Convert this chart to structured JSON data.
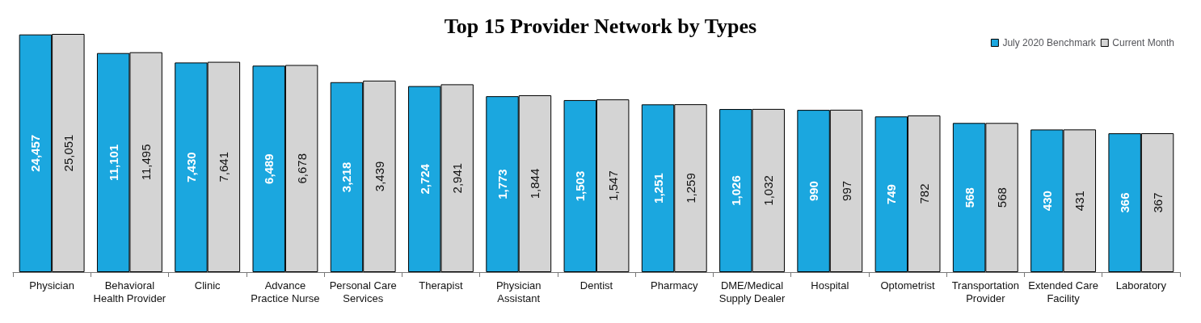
{
  "chart_data": {
    "type": "bar",
    "title": "Top 15 Provider Network by Types",
    "categories": [
      "Physician",
      "Behavioral\nHealth Provider",
      "Clinic",
      "Advance\nPractice Nurse",
      "Personal Care\nServices",
      "Therapist",
      "Physician\nAssistant",
      "Dentist",
      "Pharmacy",
      "DME/Medical\nSupply Dealer",
      "Hospital",
      "Optometrist",
      "Transportation\nProvider",
      "Extended Care\nFacility",
      "Laboratory"
    ],
    "series": [
      {
        "name": "July 2020 Benchmark",
        "color": "#1ba7df",
        "values": [
          24457,
          11101,
          7430,
          6489,
          3218,
          2724,
          1773,
          1503,
          1251,
          1026,
          990,
          749,
          568,
          430,
          366
        ],
        "value_labels": [
          "24,457",
          "11,101",
          "7,430",
          "6,489",
          "3,218",
          "2,724",
          "1,773",
          "1,503",
          "1,251",
          "1,026",
          "990",
          "749",
          "568",
          "430",
          "366"
        ]
      },
      {
        "name": "Current Month",
        "color": "#d4d4d4",
        "values": [
          25051,
          11495,
          7641,
          6678,
          3439,
          2941,
          1844,
          1547,
          1259,
          1032,
          997,
          782,
          568,
          431,
          367
        ],
        "value_labels": [
          "25,051",
          "11,495",
          "7,641",
          "6,678",
          "3,439",
          "2,941",
          "1,844",
          "1,547",
          "1,259",
          "1,032",
          "997",
          "782",
          "568",
          "431",
          "367"
        ]
      }
    ],
    "log": true,
    "ylim": [
      1,
      25051
    ],
    "legend": "top right",
    "tick_labels": "x"
  }
}
